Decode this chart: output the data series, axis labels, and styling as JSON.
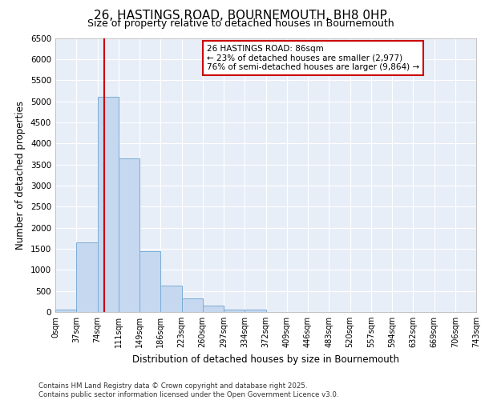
{
  "title_line1": "26, HASTINGS ROAD, BOURNEMOUTH, BH8 0HP",
  "title_line2": "Size of property relative to detached houses in Bournemouth",
  "xlabel": "Distribution of detached houses by size in Bournemouth",
  "ylabel": "Number of detached properties",
  "bar_values": [
    50,
    1650,
    5100,
    3650,
    1450,
    625,
    325,
    150,
    50,
    50,
    0,
    0,
    0,
    0,
    0,
    0,
    0,
    0,
    0,
    0
  ],
  "bin_labels": [
    "0sqm",
    "37sqm",
    "74sqm",
    "111sqm",
    "149sqm",
    "186sqm",
    "223sqm",
    "260sqm",
    "297sqm",
    "334sqm",
    "372sqm",
    "409sqm",
    "446sqm",
    "483sqm",
    "520sqm",
    "557sqm",
    "594sqm",
    "632sqm",
    "669sqm",
    "706sqm",
    "743sqm"
  ],
  "bar_color": "#c5d8f0",
  "bar_edge_color": "#7aadd4",
  "vline_color": "#cc0000",
  "annotation_text_line1": "26 HASTINGS ROAD: 86sqm",
  "annotation_text_line2": "← 23% of detached houses are smaller (2,977)",
  "annotation_text_line3": "76% of semi-detached houses are larger (9,864) →",
  "annotation_box_color": "#cc0000",
  "ylim": [
    0,
    6500
  ],
  "yticks": [
    0,
    500,
    1000,
    1500,
    2000,
    2500,
    3000,
    3500,
    4000,
    4500,
    5000,
    5500,
    6000,
    6500
  ],
  "plot_bg_color": "#e8eef8",
  "figure_bg_color": "#ffffff",
  "grid_color": "#ffffff",
  "footer_line1": "Contains HM Land Registry data © Crown copyright and database right 2025.",
  "footer_line2": "Contains public sector information licensed under the Open Government Licence v3.0."
}
